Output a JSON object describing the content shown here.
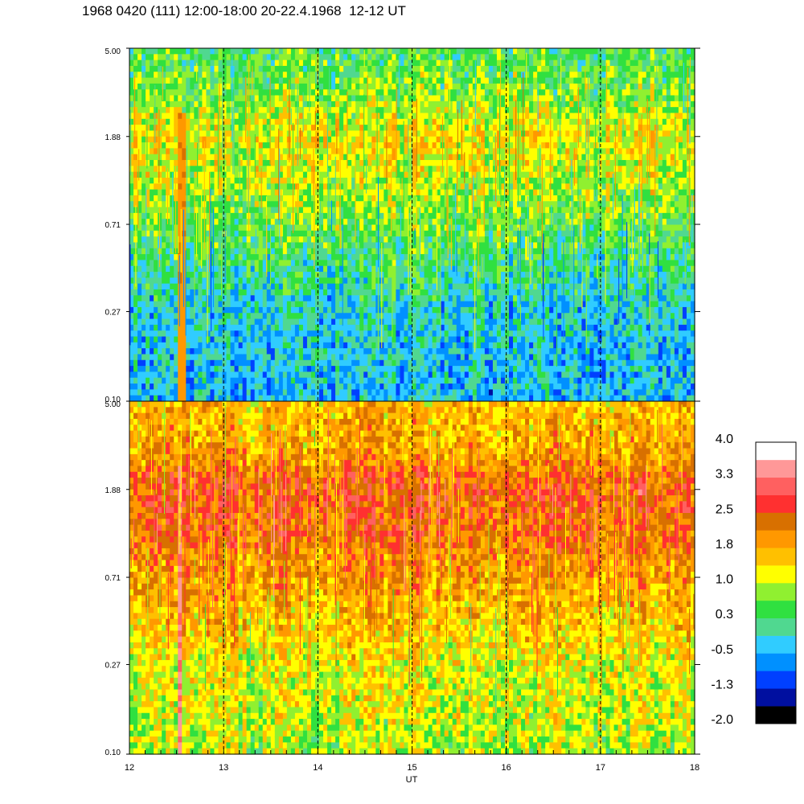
{
  "title": "1968 0420 (111) 12:00-18:00 20-22.4.1968  12-12 UT",
  "chart_data": {
    "type": "heatmap",
    "xlabel": "UT",
    "x_ticks": [
      "12",
      "13",
      "14",
      "15",
      "16",
      "17",
      "18"
    ],
    "xlim": [
      12,
      18
    ],
    "grid_lines_at": [
      13,
      14,
      15,
      16,
      17
    ],
    "grid_style": "dashed vertical",
    "panels": [
      {
        "name": "upper",
        "y_ticks": [
          "5.00",
          "1.88",
          "0.71",
          "0.27",
          "0.10"
        ],
        "ylim": [
          0.1,
          5.0
        ],
        "y_scale": "log",
        "profile": [
          {
            "y": 5.0,
            "level": 0.4
          },
          {
            "y": 3.0,
            "level": 0.7
          },
          {
            "y": 1.88,
            "level": 1.3
          },
          {
            "y": 1.3,
            "level": 1.1
          },
          {
            "y": 0.71,
            "level": 0.6
          },
          {
            "y": 0.45,
            "level": 0.2
          },
          {
            "y": 0.27,
            "level": -0.2
          },
          {
            "y": 0.1,
            "level": -0.4
          }
        ],
        "feature": {
          "type": "band",
          "x_range": [
            12.5,
            12.6
          ],
          "level": 2.0
        }
      },
      {
        "name": "lower",
        "y_ticks": [
          "5.00",
          "1.88",
          "0.71",
          "0.27",
          "0.10"
        ],
        "ylim": [
          0.1,
          5.0
        ],
        "y_scale": "log",
        "profile": [
          {
            "y": 5.0,
            "level": 1.6
          },
          {
            "y": 3.0,
            "level": 1.8
          },
          {
            "y": 1.88,
            "level": 2.4
          },
          {
            "y": 1.3,
            "level": 2.3
          },
          {
            "y": 0.71,
            "level": 1.9
          },
          {
            "y": 0.45,
            "level": 1.6
          },
          {
            "y": 0.27,
            "level": 1.2
          },
          {
            "y": 0.1,
            "level": 0.9
          }
        ],
        "feature": {
          "type": "band",
          "x_range": [
            12.5,
            12.56
          ],
          "level": 3.3
        }
      }
    ],
    "colorbar": {
      "labels": [
        "4.0",
        "3.3",
        "2.5",
        "1.8",
        "1.0",
        "0.3",
        "-0.5",
        "-1.3",
        "-2.0"
      ],
      "range": [
        -2.0,
        4.0
      ],
      "colors": [
        "#000000",
        "#000fa0",
        "#0040ff",
        "#0090ff",
        "#30ccff",
        "#50d890",
        "#30e040",
        "#90f030",
        "#ffff00",
        "#ffc000",
        "#ff9800",
        "#d87000",
        "#ff3030",
        "#ff6060",
        "#ff9898",
        "#ffffff"
      ]
    }
  }
}
